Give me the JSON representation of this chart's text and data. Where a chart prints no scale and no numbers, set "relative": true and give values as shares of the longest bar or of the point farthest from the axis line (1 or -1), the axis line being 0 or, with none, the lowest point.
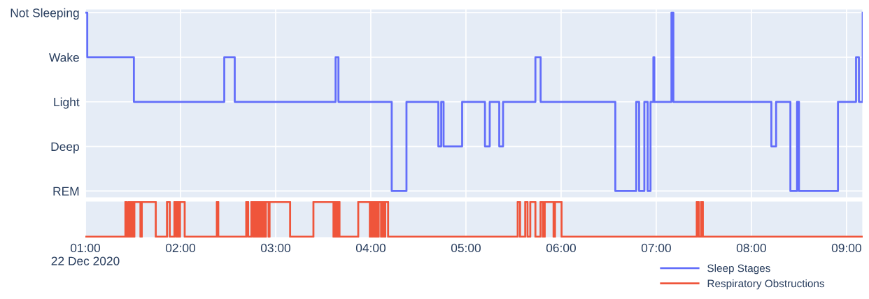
{
  "chart_data": [
    {
      "type": "step",
      "x": [
        1.0,
        1.02,
        1.51,
        2.46,
        2.57,
        3.63,
        3.66,
        4.22,
        4.375,
        4.71,
        4.74,
        4.765,
        4.96,
        5.2,
        5.25,
        5.35,
        5.39,
        5.73,
        5.785,
        6.57,
        6.79,
        6.82,
        6.875,
        6.91,
        6.94,
        6.97,
        6.98,
        7.16,
        7.18,
        8.21,
        8.26,
        8.41,
        8.48,
        8.5,
        8.91,
        9.1,
        9.13,
        9.17
      ],
      "y_categories": [
        "Not Sleeping",
        "Wake",
        "Light",
        "Deep",
        "REM"
      ],
      "relative": true,
      "series": [
        {
          "name": "Sleep Stages",
          "color": "#636efa",
          "values": [
            1,
            0.75,
            0.5,
            0.75,
            0.5,
            0.75,
            0.5,
            0,
            0.5,
            0.25,
            0.5,
            0.25,
            0.5,
            0.25,
            0.5,
            0.25,
            0.5,
            0.75,
            0.5,
            0,
            0.5,
            0,
            0.5,
            0,
            0.5,
            0.75,
            0.5,
            1,
            0.5,
            0.25,
            0.5,
            0,
            0.5,
            0,
            0.5,
            0.75,
            0.5,
            1
          ]
        }
      ],
      "xlim": [
        1,
        9.17
      ],
      "xticks": [
        {
          "value": 1,
          "label": null
        },
        {
          "value": 2,
          "label": null
        },
        {
          "value": 3,
          "label": null
        },
        {
          "value": 4,
          "label": null
        },
        {
          "value": 5,
          "label": null
        },
        {
          "value": 6,
          "label": null
        },
        {
          "value": 7,
          "label": null
        },
        {
          "value": 8,
          "label": null
        },
        {
          "value": 9,
          "label": null
        }
      ],
      "tick_labels": "y",
      "grid": true,
      "legend": "bottom right"
    },
    {
      "type": "step",
      "relative": true,
      "x": [
        1.0,
        1.421,
        1.436,
        1.456,
        1.471,
        1.485,
        1.5,
        1.515,
        1.579,
        1.593,
        1.74,
        1.858,
        1.887,
        1.936,
        1.956,
        1.971,
        1.985,
        1.995,
        2.044,
        2.382,
        2.397,
        2.691,
        2.711,
        2.745,
        2.765,
        2.779,
        2.794,
        2.804,
        2.819,
        2.833,
        2.848,
        2.863,
        2.882,
        2.897,
        2.926,
        2.936,
        3.152,
        3.397,
        3.608,
        3.618,
        3.637,
        3.652,
        3.671,
        3.868,
        3.99,
        4.0,
        4.015,
        4.025,
        4.044,
        4.054,
        4.068,
        4.083,
        4.108,
        4.118,
        4.137,
        4.152,
        4.182,
        5.544,
        5.569,
        5.623,
        5.647,
        5.676,
        5.73,
        5.784,
        5.809,
        5.828,
        5.921,
        5.936,
        6.005,
        7.426,
        7.446,
        7.471,
        7.49,
        9.17
      ],
      "series": [
        {
          "name": "Respiratory Obstructions",
          "color": "#ef553b",
          "values": [
            0,
            1,
            0,
            1,
            0,
            1,
            0,
            1,
            0,
            1,
            0,
            1,
            0,
            1,
            0,
            1,
            0,
            1,
            0,
            1,
            0,
            1,
            0,
            1,
            0,
            1,
            0,
            1,
            0,
            1,
            0,
            1,
            0,
            1,
            0,
            1,
            0,
            1,
            0,
            1,
            0,
            1,
            0,
            1,
            0,
            1,
            0,
            1,
            0,
            1,
            0,
            1,
            0,
            1,
            0,
            1,
            0,
            1,
            0,
            1,
            0,
            1,
            0,
            1,
            0,
            1,
            0,
            1,
            0,
            1,
            0,
            1,
            0,
            0
          ]
        }
      ],
      "xlim": [
        1,
        9.17
      ],
      "xticks": [
        {
          "value": 1,
          "label": "01:00\n22 Dec 2020"
        },
        {
          "value": 2,
          "label": "02:00"
        },
        {
          "value": 3,
          "label": "03:00"
        },
        {
          "value": 4,
          "label": "04:00"
        },
        {
          "value": 5,
          "label": "05:00"
        },
        {
          "value": 6,
          "label": "06:00"
        },
        {
          "value": 7,
          "label": "07:00"
        },
        {
          "value": 8,
          "label": "08:00"
        },
        {
          "value": 9,
          "label": "09:00"
        }
      ],
      "tick_labels": "x",
      "grid": "x",
      "legend": "bottom right"
    }
  ]
}
